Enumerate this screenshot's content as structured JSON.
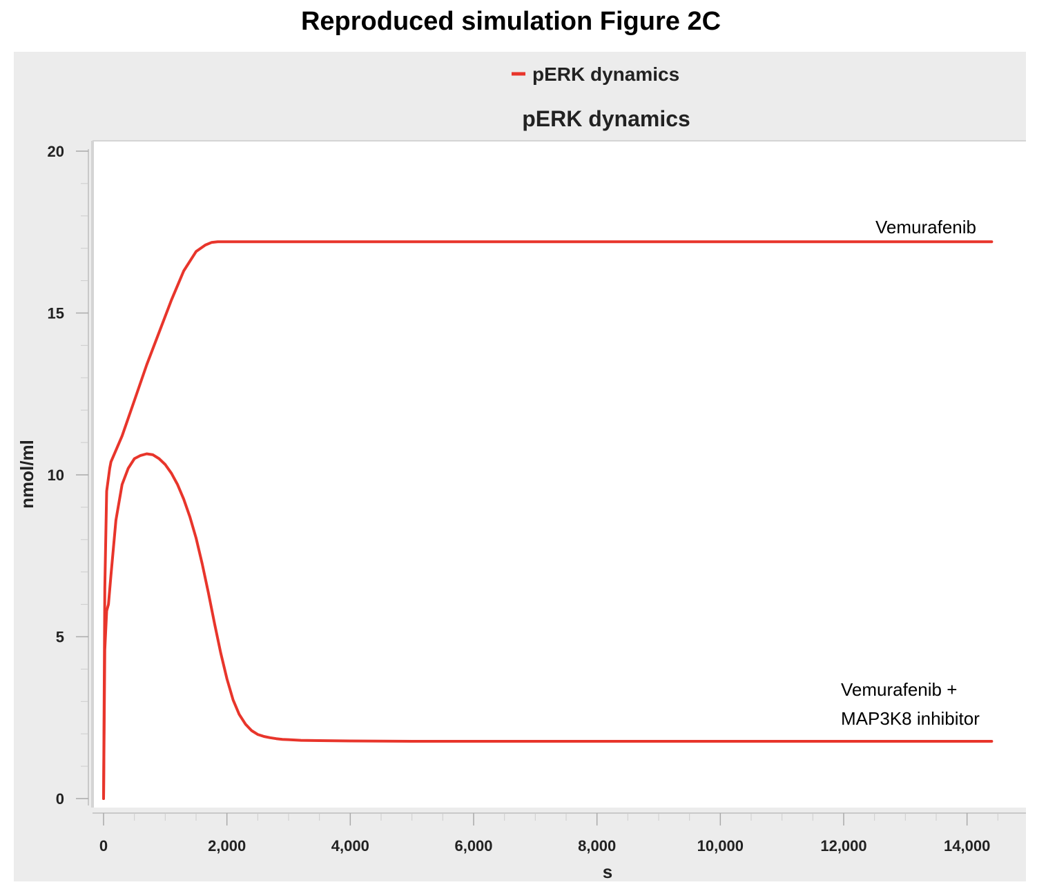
{
  "figure_title": "Reproduced simulation Figure 2C",
  "chart_data": {
    "type": "line",
    "title": "pERK dynamics",
    "legend": {
      "label": "pERK dynamics",
      "placement": "top-center"
    },
    "xlabel": "s",
    "ylabel": "nmol/ml",
    "xlim": [
      -150,
      14800
    ],
    "ylim": [
      0,
      20
    ],
    "x_ticks": [
      0,
      2000,
      4000,
      6000,
      8000,
      10000,
      12000,
      14000
    ],
    "x_tick_labels": [
      "0",
      "2,000",
      "4,000",
      "6,000",
      "8,000",
      "10,000",
      "12,000",
      "14,000"
    ],
    "y_ticks": [
      0,
      5,
      10,
      15,
      20
    ],
    "y_tick_labels": [
      "0",
      "5",
      "10",
      "15",
      "20"
    ],
    "grid": false,
    "line_color": "#e8352b",
    "background": "#ececec",
    "series": [
      {
        "annotation": "Vemurafenib",
        "x": [
          0,
          20,
          50,
          100,
          120,
          300,
          500,
          700,
          900,
          1100,
          1300,
          1500,
          1650,
          1750,
          1850,
          2000,
          2500,
          4000,
          8000,
          12000,
          14400
        ],
        "y": [
          0,
          6.5,
          9.5,
          10.2,
          10.4,
          11.2,
          12.3,
          13.4,
          14.4,
          15.4,
          16.3,
          16.9,
          17.1,
          17.18,
          17.2,
          17.2,
          17.2,
          17.2,
          17.2,
          17.2,
          17.2
        ]
      },
      {
        "annotation": "Vemurafenib + MAP3K8 inhibitor",
        "x": [
          0,
          20,
          50,
          80,
          120,
          200,
          300,
          400,
          500,
          600,
          700,
          800,
          900,
          1000,
          1100,
          1200,
          1300,
          1400,
          1500,
          1600,
          1700,
          1800,
          1900,
          2000,
          2100,
          2200,
          2300,
          2400,
          2500,
          2600,
          2700,
          2800,
          2900,
          3000,
          3200,
          3500,
          4000,
          5000,
          7000,
          10000,
          14400
        ],
        "y": [
          0,
          4.6,
          5.8,
          6.0,
          6.9,
          8.6,
          9.7,
          10.2,
          10.5,
          10.6,
          10.65,
          10.62,
          10.5,
          10.32,
          10.05,
          9.7,
          9.25,
          8.7,
          8.05,
          7.25,
          6.35,
          5.4,
          4.5,
          3.7,
          3.05,
          2.6,
          2.3,
          2.1,
          1.98,
          1.92,
          1.88,
          1.85,
          1.83,
          1.82,
          1.8,
          1.79,
          1.78,
          1.77,
          1.77,
          1.77,
          1.77
        ]
      }
    ]
  }
}
